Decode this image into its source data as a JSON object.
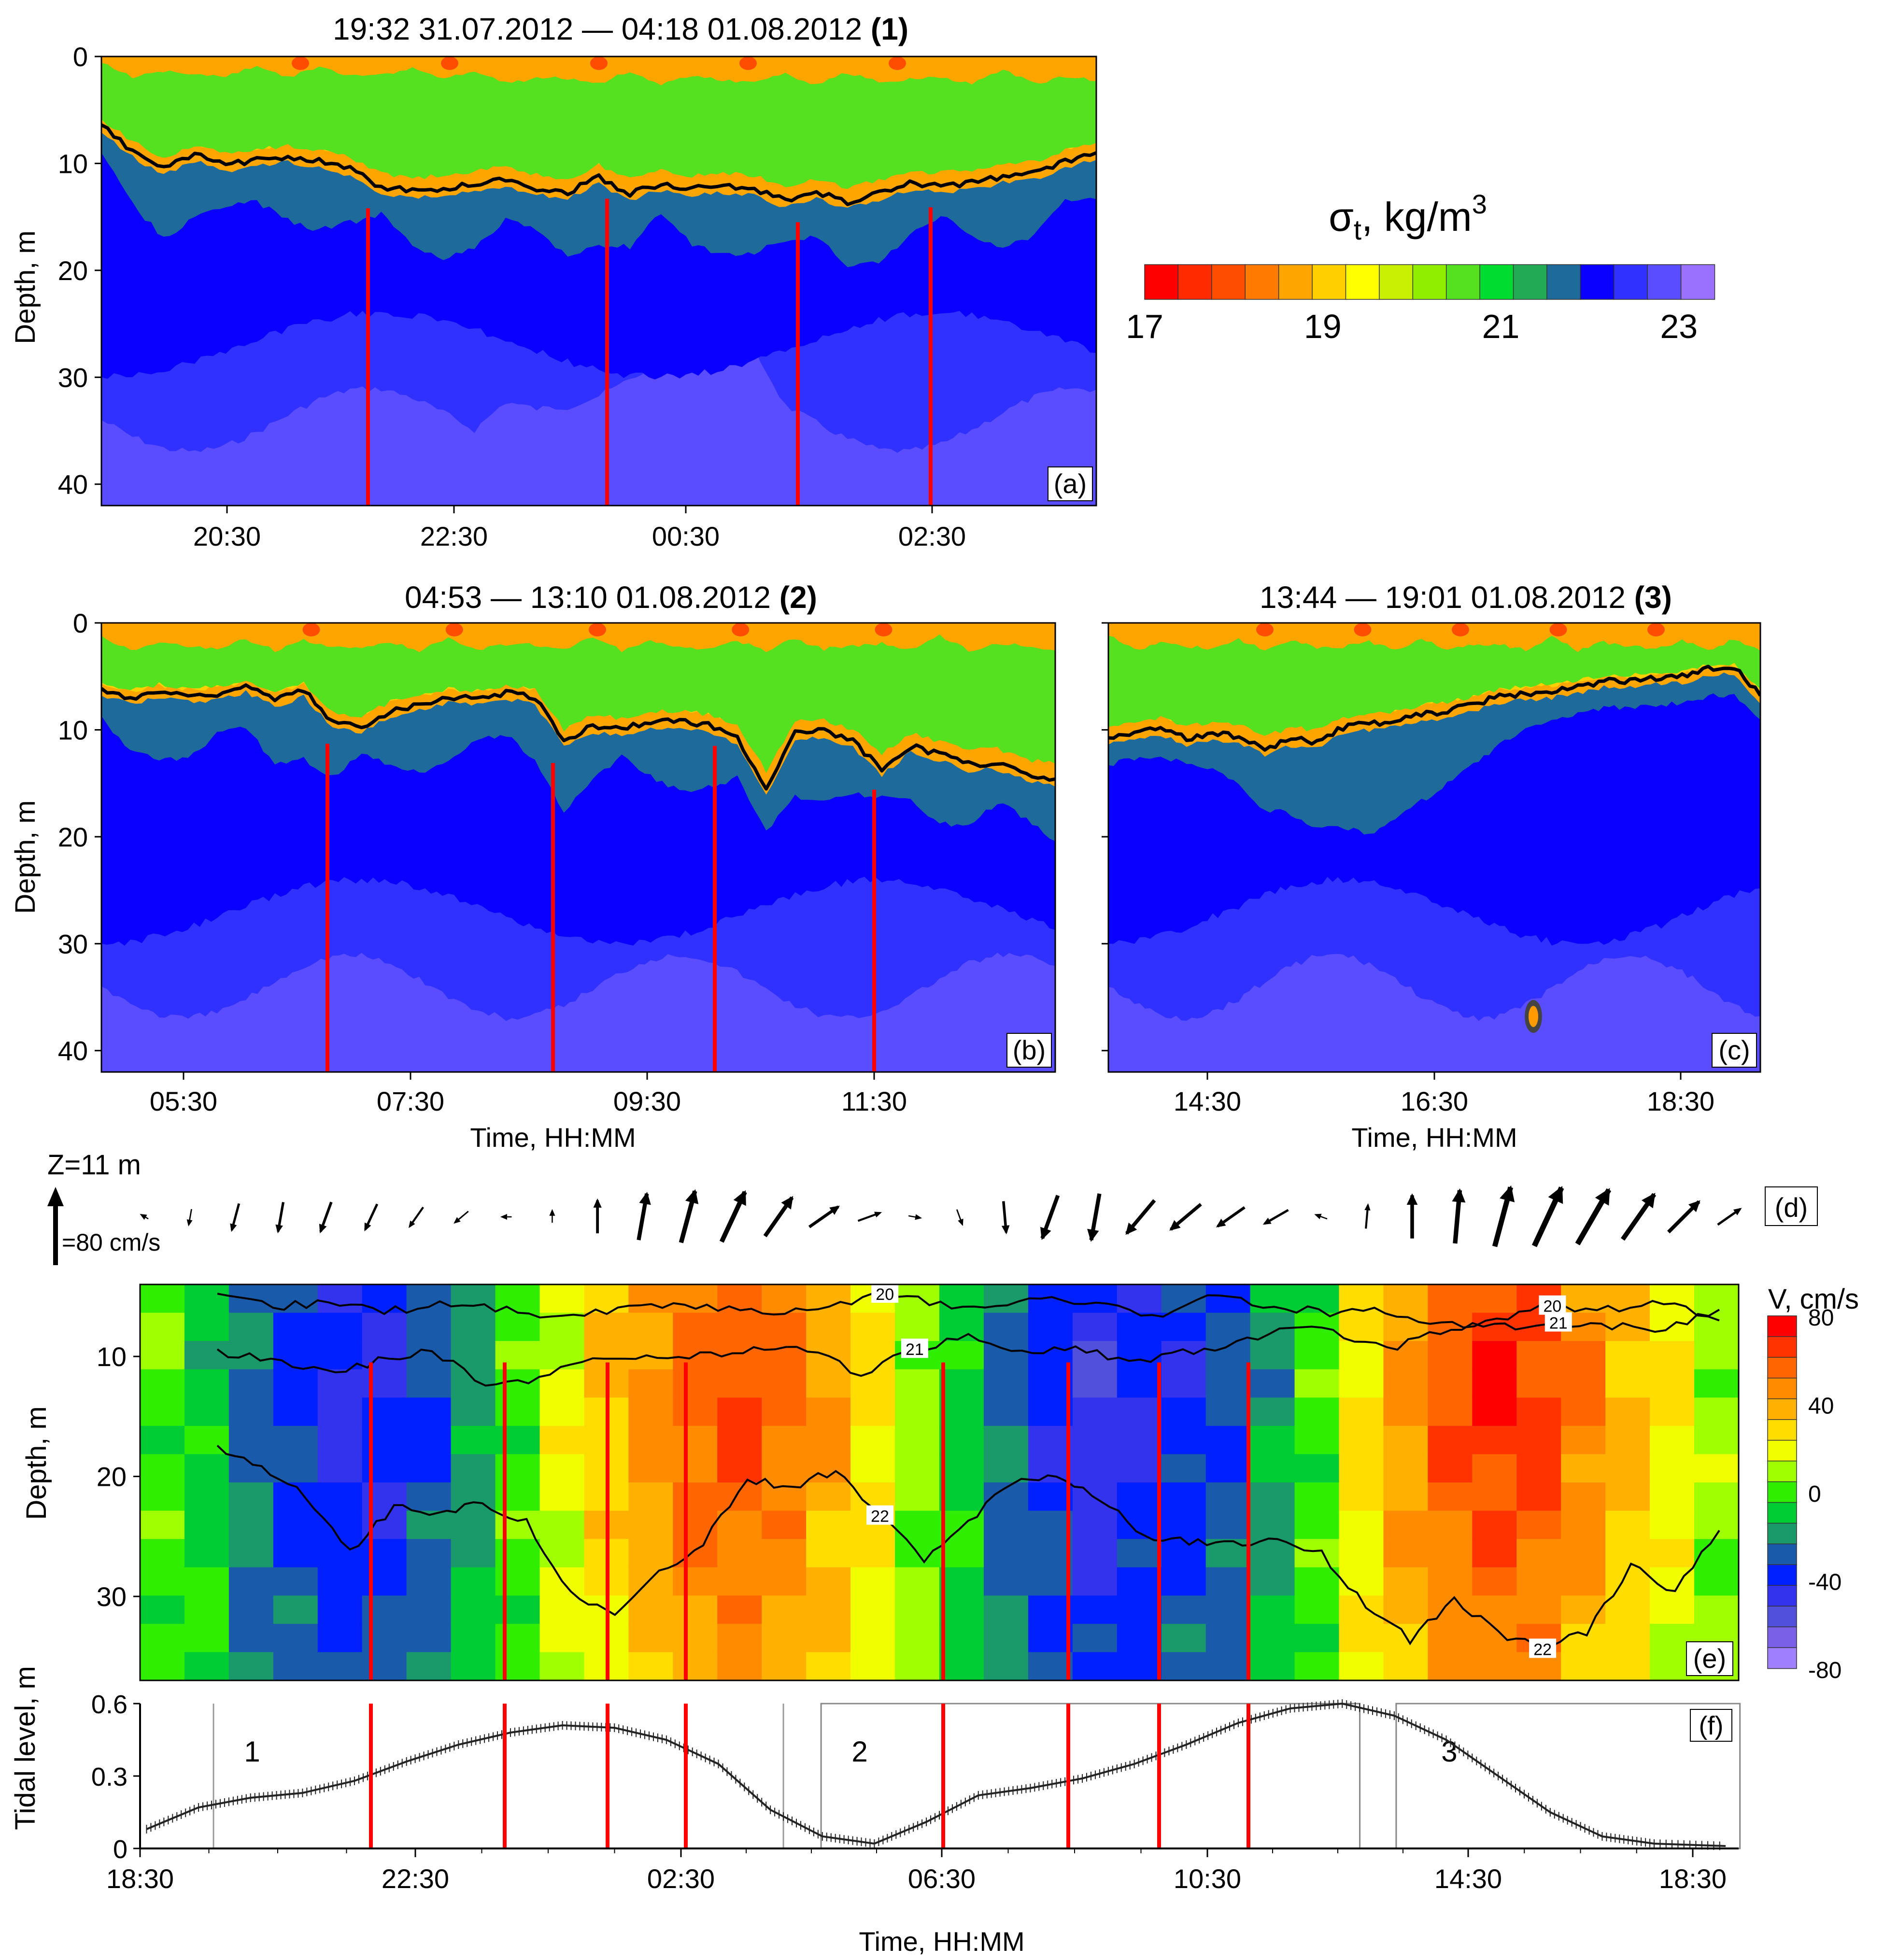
{
  "colors": {
    "density_scale": [
      "#ff0000",
      "#ff2a00",
      "#ff4d00",
      "#ff7a00",
      "#ffa500",
      "#ffd000",
      "#ffff00",
      "#c8f000",
      "#90ee00",
      "#55e020",
      "#00dd30",
      "#22aa55",
      "#1e6a9a",
      "#0a00ff",
      "#3030ff",
      "#5a4cff",
      "#9a70ff"
    ],
    "velocity_scale": [
      "#ff0000",
      "#ff3300",
      "#ff6600",
      "#ff8c00",
      "#ffb000",
      "#ffdd00",
      "#f0ff00",
      "#a0ff00",
      "#30ee00",
      "#00cc33",
      "#1a9a6a",
      "#1a5aaa",
      "#0020ff",
      "#3333ee",
      "#5050dd",
      "#7a60e6",
      "#a080ff"
    ],
    "red_line": "#ff0000",
    "isopycnal": "#000000"
  },
  "chart_data": [
    {
      "id": "a",
      "type": "heatmap",
      "title": "19:32 31.07.2012 — 04:18 01.08.2012",
      "title_num": "(1)",
      "panel_label": "(a)",
      "xlabel": "",
      "ylabel": "Depth, m",
      "x_range_hours": [
        19.53,
        28.3
      ],
      "ylim": [
        0,
        42
      ],
      "y_ticks": [
        "0",
        "10",
        "20",
        "30",
        "40"
      ],
      "x_ticks": [
        "20:30",
        "22:30",
        "00:30",
        "02:30"
      ],
      "pycnocline_depth_m": [
        6.5,
        8.8,
        10.5,
        9.2,
        10.1,
        9.7,
        9.3,
        9.8,
        10.5,
        12.2,
        12.6,
        12.4,
        11.9,
        11.5,
        12.3,
        12.7,
        11.3,
        12.8,
        11.9,
        12.4,
        12.1,
        12.4,
        13.5,
        12.7,
        13.6,
        12.8,
        11.9,
        12.1,
        11.8,
        11.2,
        10.9,
        9.8,
        9.0
      ],
      "red_line_times": [
        "22:00",
        "00:05",
        "01:45",
        "02:40"
      ]
    },
    {
      "id": "b",
      "type": "heatmap",
      "title": "04:53 — 13:10 01.08.2012",
      "title_num": "(2)",
      "panel_label": "(b)",
      "xlabel": "Time, HH:MM",
      "ylabel": "Depth, m",
      "x_range_hours": [
        4.88,
        13.17
      ],
      "ylim": [
        0,
        42
      ],
      "y_ticks": [
        "0",
        "10",
        "20",
        "30",
        "40"
      ],
      "x_ticks": [
        "05:30",
        "07:30",
        "09:30",
        "11:30"
      ],
      "pycnocline_depth_m": [
        6.2,
        7.0,
        6.4,
        6.8,
        6.6,
        5.9,
        7.2,
        6.3,
        9.3,
        9.7,
        8.2,
        7.6,
        6.9,
        7.1,
        6.5,
        6.9,
        11.1,
        9.6,
        9.9,
        9.2,
        9.2,
        9.5,
        10.8,
        15.4,
        10.2,
        10.1,
        11.1,
        13.6,
        11.5,
        12.3,
        13.2,
        13.1,
        14.2,
        14.6
      ],
      "red_line_times": [
        "06:50",
        "08:50",
        "10:15",
        "11:40"
      ]
    },
    {
      "id": "c",
      "type": "heatmap",
      "title": "13:44 — 19:01 01.08.2012",
      "title_num": "(3)",
      "panel_label": "(c)",
      "xlabel": "Time, HH:MM",
      "ylabel": "",
      "x_range_hours": [
        13.73,
        19.02
      ],
      "ylim": [
        0,
        42
      ],
      "y_ticks": [],
      "x_ticks": [
        "14:30",
        "16:30",
        "18:30"
      ],
      "pycnocline_depth_m": [
        10.8,
        10.2,
        9.9,
        10.8,
        10.3,
        10.6,
        11.8,
        10.9,
        11.1,
        9.8,
        9.4,
        9.2,
        8.6,
        8.2,
        7.6,
        6.9,
        6.6,
        6.4,
        6.0,
        5.4,
        5.5,
        5.1,
        5.0,
        4.3,
        4.2,
        6.8
      ],
      "red_line_times": []
    },
    {
      "id": "d",
      "type": "vector",
      "depth_label": "Z=11 m",
      "scale_label": "=80 cm/s",
      "panel_label": "(d)",
      "speed_cm_s": [
        10,
        20,
        35,
        38,
        40,
        36,
        30,
        22,
        12,
        15,
        42,
        60,
        68,
        70,
        60,
        45,
        30,
        15,
        20,
        40,
        58,
        60,
        55,
        50,
        42,
        35,
        15,
        30,
        55,
        68,
        78,
        82,
        80,
        70,
        55,
        35
      ],
      "direction_deg": [
        300,
        190,
        195,
        190,
        200,
        205,
        215,
        230,
        270,
        0,
        0,
        10,
        15,
        25,
        35,
        55,
        70,
        100,
        160,
        175,
        200,
        190,
        220,
        230,
        235,
        240,
        290,
        5,
        0,
        5,
        15,
        25,
        30,
        35,
        45,
        55
      ]
    },
    {
      "id": "e",
      "type": "heatmap",
      "title": "",
      "panel_label": "(e)",
      "colorbar_title": "V, cm/s",
      "colorbar_ticks": [
        "80",
        "40",
        "0",
        "-40",
        "-80"
      ],
      "colorbar_range": [
        -80,
        80
      ],
      "ylabel": "Depth, m",
      "ylim": [
        4,
        37
      ],
      "y_ticks": [
        "10",
        "20",
        "30"
      ],
      "x_range_hours": [
        18.5,
        43.1
      ],
      "along_track_velocity_cm_s": [
        0,
        -10,
        -30,
        -40,
        -50,
        -48,
        -35,
        -20,
        0,
        20,
        35,
        50,
        62,
        68,
        60,
        45,
        30,
        10,
        -10,
        -30,
        -45,
        -55,
        -48,
        -42,
        -35,
        -20,
        0,
        30,
        50,
        65,
        75,
        70,
        55,
        40,
        25,
        10
      ],
      "isopycnals": [
        {
          "label": "20",
          "depth_m": [
            5.1,
            5.9,
            5.4,
            6.3,
            5.6,
            5.9,
            6.8,
            6.2,
            5.6,
            5.9,
            6.5,
            5.7,
            4.8,
            5.6,
            6.0,
            5.1,
            5.8,
            6.6,
            4.9,
            5.9,
            6.3,
            6.1,
            7.5,
            6.9,
            5.8,
            6.1,
            5.3,
            7.0
          ]
        },
        {
          "label": "21",
          "depth_m": [
            9.7,
            10.1,
            11.3,
            10.4,
            9.4,
            12.6,
            11.8,
            10.1,
            10.2,
            9.9,
            9.4,
            9.4,
            11.6,
            9.4,
            8.2,
            9.5,
            9.2,
            10.7,
            9.6,
            9.0,
            7.4,
            8.3,
            9.1,
            7.6,
            7.5,
            7.2,
            7.4,
            7.8,
            6.1
          ]
        },
        {
          "label": "22",
          "depth_m": [
            17.7,
            19.0,
            21.6,
            26.2,
            22.6,
            23.0,
            22.3,
            23.7,
            29.8,
            31.6,
            28.2,
            25.5,
            20.3,
            20.9,
            19.5,
            23.3,
            27.0,
            23.7,
            20.3,
            19.8,
            22.0,
            24.9,
            25.4,
            25.7,
            25.2,
            26.5,
            30.6,
            33.6,
            30.2,
            33.0,
            34.4,
            33.0,
            27.4,
            29.6,
            24.5
          ]
        }
      ],
      "red_line_times": [
        "22:00",
        "00:05",
        "01:45",
        "02:40"
      ]
    },
    {
      "id": "f",
      "type": "line",
      "panel_label": "(f)",
      "xlabel": "Time, HH:MM",
      "ylabel": "Tidal level, m",
      "ylim": [
        0,
        0.6
      ],
      "y_ticks": [
        "0",
        "0.3",
        "0.6"
      ],
      "x_ticks": [
        "18:30",
        "22:30",
        "02:30",
        "06:30",
        "10:30",
        "14:30",
        "18:30"
      ],
      "x_range_hours": [
        18.4,
        43.0
      ],
      "series_x_hours": [
        18.5,
        19.5,
        20.5,
        21.5,
        22.5,
        23.5,
        24.5,
        25.5,
        26.5,
        27.5,
        28.5,
        29.5,
        30.5,
        31.5,
        32.5,
        33.5,
        34.5,
        35.5,
        36.5,
        37.5,
        38.5,
        39.5,
        40.5,
        41.5,
        42.5,
        43.0
      ],
      "series_y_m": [
        0.08,
        0.17,
        0.21,
        0.23,
        0.28,
        0.36,
        0.43,
        0.48,
        0.51,
        0.5,
        0.45,
        0.35,
        0.16,
        0.05,
        0.02,
        0.11,
        0.22,
        0.25,
        0.29,
        0.35,
        0.43,
        0.52,
        0.58,
        0.6,
        0.55,
        0.45,
        0.3,
        0.15,
        0.05,
        0.02,
        0.01
      ],
      "series_x_hours_full": [
        18.5,
        19.3,
        20.1,
        20.9,
        21.7,
        22.5,
        23.3,
        24.1,
        24.9,
        25.7,
        26.5,
        27.3,
        28.1,
        28.9,
        29.7,
        30.5,
        31.3,
        32.1,
        32.9,
        33.7,
        34.5,
        35.3,
        36.1,
        36.9,
        37.7,
        38.5,
        39.3,
        40.1,
        40.9,
        41.7,
        42.8
      ],
      "segments": [
        {
          "label": "1",
          "start_h": 19.53,
          "end_h": 28.3
        },
        {
          "label": "2",
          "start_h": 28.88,
          "end_h": 37.17
        },
        {
          "label": "3",
          "start_h": 37.73,
          "end_h": 43.02
        }
      ],
      "red_line_times": [
        "22:00",
        "00:05",
        "01:45",
        "02:40",
        "06:50",
        "08:50",
        "10:15",
        "11:40"
      ]
    }
  ],
  "colorbar_density": {
    "title": "σt, kg/m³",
    "title_main": "σ",
    "title_sub": "t",
    "title_rest": ", kg/m",
    "title_sup": "3",
    "ticks": [
      "17",
      "19",
      "21",
      "23"
    ],
    "range": [
      17,
      23.4
    ]
  }
}
